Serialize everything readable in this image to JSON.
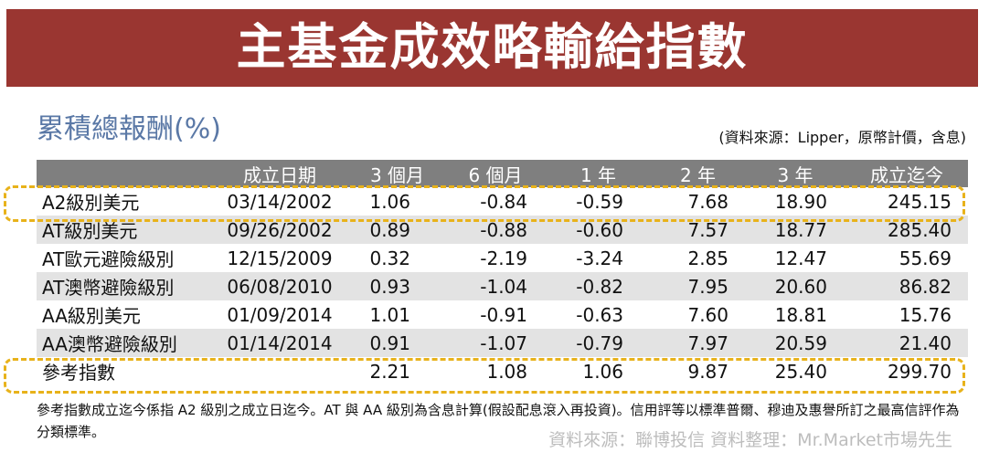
{
  "banner": {
    "title": "主基金成效略輸給指數"
  },
  "section": {
    "subtitle": "累積總報酬(%)",
    "source": "(資料來源：Lipper，原幣計價，含息)"
  },
  "table": {
    "headers": [
      "",
      "成立日期",
      "3 個月",
      "6 個月",
      "1 年",
      "2 年",
      "3 年",
      "成立迄今"
    ],
    "rows": [
      [
        "A2級別美元",
        "03/14/2002",
        "1.06",
        "-0.84",
        "-0.59",
        "7.68",
        "18.90",
        "245.15"
      ],
      [
        "AT級別美元",
        "09/26/2002",
        "0.89",
        "-0.88",
        "-0.60",
        "7.57",
        "18.77",
        "285.40"
      ],
      [
        "AT歐元避險級別",
        "12/15/2009",
        "0.32",
        "-2.19",
        "-3.24",
        "2.85",
        "12.47",
        "55.69"
      ],
      [
        "AT澳幣避險級別",
        "06/08/2010",
        "0.93",
        "-1.04",
        "-0.82",
        "7.95",
        "20.60",
        "86.82"
      ],
      [
        "AA級別美元",
        "01/09/2014",
        "1.01",
        "-0.91",
        "-0.63",
        "7.60",
        "18.81",
        "15.76"
      ],
      [
        "AA澳幣避險級別",
        "01/14/2014",
        "0.91",
        "-1.07",
        "-0.79",
        "7.97",
        "20.59",
        "21.40"
      ],
      [
        "參考指數",
        "",
        "2.21",
        "1.08",
        "1.06",
        "9.87",
        "25.40",
        "299.70"
      ]
    ]
  },
  "footnote": "參考指數成立迄今係指 A2 級別之成立日迄今。AT 與 AA 級別為含息計算(假設配息滾入再投資)。信用評等以標準普爾、穆迪及惠譽所訂之最高信評作為分類標準。",
  "credit": "資料來源：聯博投信 資料整理：Mr.Market市場先生",
  "colors": {
    "banner": "#9a3631",
    "highlight": "#e8b21a",
    "header": "#7f7f7f",
    "subtitle": "#5a78a6"
  }
}
